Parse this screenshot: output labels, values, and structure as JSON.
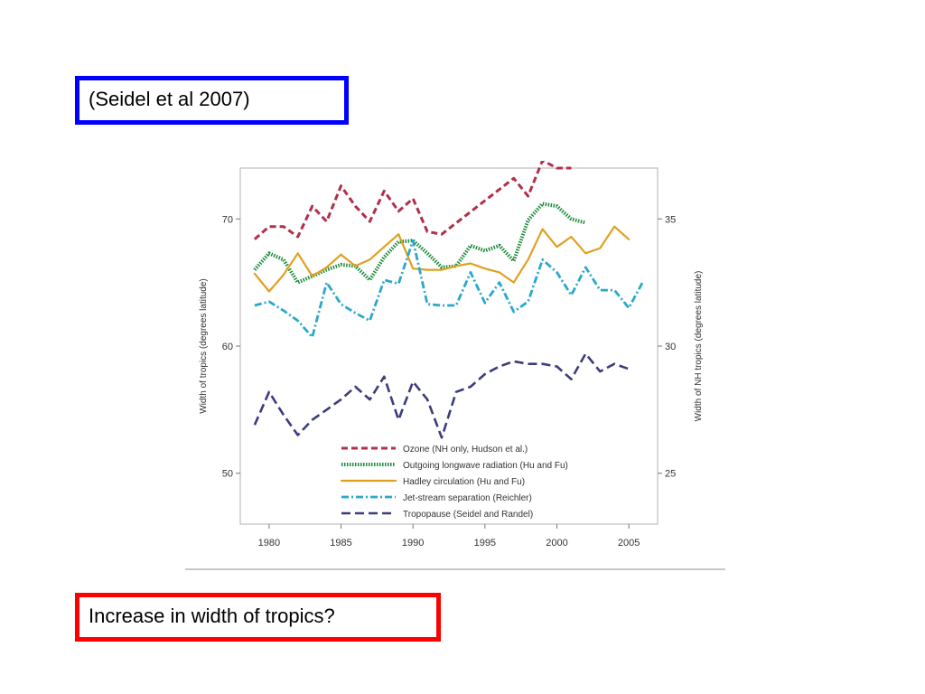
{
  "slide": {
    "citation": "(Seidel et al  2007)",
    "question": "Increase in width of tropics?",
    "citation_border_color": "#0000ff",
    "question_border_color": "#ff0000"
  },
  "chart_data": {
    "type": "line",
    "title": "",
    "xlabel": "",
    "ylabel": "Width of tropics (degrees latitude)",
    "ylabel_right": "Width of NH tropics (degrees latitude)",
    "xlim": [
      1978,
      2007
    ],
    "ylim": [
      46,
      74
    ],
    "ylim_right": [
      23,
      37
    ],
    "x_ticks": [
      1980,
      1985,
      1990,
      1995,
      2000,
      2005
    ],
    "y_ticks": [
      50,
      60,
      70
    ],
    "y_ticks_right": [
      25,
      30,
      35
    ],
    "grid": false,
    "legend_position": "bottom-right",
    "series": [
      {
        "name": "Ozone (NH only, Hudson et al.)",
        "axis": "right",
        "color": "#b0304a",
        "style": "dashed",
        "x": [
          1979,
          1980,
          1981,
          1982,
          1983,
          1984,
          1985,
          1986,
          1987,
          1988,
          1989,
          1990,
          1991,
          1992,
          1997,
          1998,
          1999,
          2000,
          2001
        ],
        "y": [
          34.2,
          34.7,
          34.7,
          34.3,
          35.5,
          34.9,
          36.3,
          35.5,
          34.9,
          36.1,
          35.3,
          35.8,
          34.5,
          34.4,
          36.6,
          35.9,
          37.3,
          37.0,
          37.0
        ]
      },
      {
        "name": "Outgoing longwave radiation (Hu and Fu)",
        "axis": "left",
        "color": "#1a8a3a",
        "style": "dotted",
        "x": [
          1979,
          1980,
          1981,
          1982,
          1983,
          1984,
          1985,
          1986,
          1987,
          1988,
          1989,
          1990,
          1991,
          1992,
          1993,
          1994,
          1995,
          1996,
          1997,
          1998,
          1999,
          2000,
          2001,
          2002
        ],
        "y": [
          66.0,
          67.3,
          66.8,
          65.0,
          65.5,
          66.0,
          66.4,
          66.3,
          65.2,
          67.0,
          68.2,
          68.3,
          67.3,
          66.2,
          66.3,
          67.9,
          67.5,
          67.9,
          66.7,
          69.9,
          71.2,
          71.0,
          70.0,
          69.7
        ]
      },
      {
        "name": "Hadley circulation (Hu and Fu)",
        "axis": "left",
        "color": "#e0a020",
        "style": "solid",
        "x": [
          1979,
          1980,
          1981,
          1982,
          1983,
          1984,
          1985,
          1986,
          1987,
          1988,
          1989,
          1990,
          1991,
          1992,
          1993,
          1994,
          1995,
          1996,
          1997,
          1998,
          1999,
          2000,
          2001,
          2002,
          2003,
          2004,
          2005
        ],
        "y": [
          65.7,
          64.3,
          65.6,
          67.3,
          65.5,
          66.2,
          67.2,
          66.3,
          66.8,
          67.8,
          68.8,
          66.1,
          66.0,
          66.0,
          66.3,
          66.5,
          66.1,
          65.8,
          65.0,
          66.8,
          69.2,
          67.8,
          68.6,
          67.3,
          67.7,
          69.4,
          68.4
        ]
      },
      {
        "name": "Jet-stream separation (Reichler)",
        "axis": "left",
        "color": "#2aa8cc",
        "style": "dashdot",
        "x": [
          1979,
          1980,
          1981,
          1982,
          1983,
          1984,
          1985,
          1986,
          1987,
          1988,
          1989,
          1990,
          1991,
          1992,
          1993,
          1994,
          1995,
          1996,
          1997,
          1998,
          1999,
          2000,
          2001,
          2002,
          2003,
          2004,
          2005,
          2006
        ],
        "y": [
          63.2,
          63.5,
          62.8,
          62.0,
          60.7,
          65.0,
          63.3,
          62.6,
          62.0,
          65.2,
          64.9,
          68.3,
          63.3,
          63.2,
          63.2,
          65.8,
          63.4,
          65.0,
          62.7,
          63.5,
          66.8,
          65.8,
          64.0,
          66.2,
          64.4,
          64.4,
          63.0,
          65.1
        ]
      },
      {
        "name": "Tropopause (Seidel and Randel)",
        "axis": "right",
        "color": "#3c3c7c",
        "style": "longdash",
        "x": [
          1979,
          1980,
          1981,
          1982,
          1983,
          1984,
          1985,
          1986,
          1987,
          1988,
          1989,
          1990,
          1991,
          1992,
          1993,
          1994,
          1995,
          1996,
          1997,
          1998,
          1999,
          2000,
          2001,
          2002,
          2003,
          2004,
          2005
        ],
        "y": [
          26.9,
          28.2,
          27.3,
          26.5,
          27.1,
          27.5,
          27.9,
          28.4,
          27.9,
          28.8,
          27.1,
          28.6,
          27.9,
          26.4,
          28.2,
          28.4,
          28.9,
          29.2,
          29.4,
          29.3,
          29.3,
          29.2,
          28.7,
          29.7,
          29.0,
          29.3,
          29.1
        ]
      }
    ]
  }
}
